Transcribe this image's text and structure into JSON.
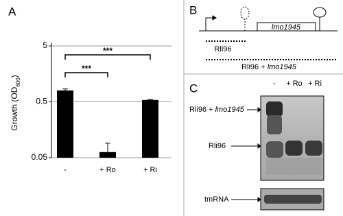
{
  "panels": {
    "a": "A",
    "b": "B",
    "c": "C"
  },
  "chart_data": {
    "type": "bar",
    "y_label_main": "Growth (OD",
    "y_label_sub": "600",
    "y_label_end": ")",
    "categories": [
      "-",
      "+ Ro",
      "+ Ri"
    ],
    "values": [
      0.8,
      0.063,
      0.54
    ],
    "errors": [
      0.05,
      0.028,
      0.01
    ],
    "color": "#000000",
    "log_scale": true,
    "ylim": [
      0.05,
      5
    ],
    "yticks": [
      5,
      0.5,
      0.05
    ],
    "grid": true,
    "significance": [
      {
        "from": 0,
        "to": 1,
        "label": "***"
      },
      {
        "from": 0,
        "to": 2,
        "label": "***"
      }
    ]
  },
  "diagram": {
    "gene": "lmo1945",
    "short_transcript": "Rli96",
    "long_transcript_main": "Rli96 + ",
    "long_transcript_italic": "lmo1945"
  },
  "gel": {
    "lanes": [
      "-",
      "+ Ro",
      "+ Ri"
    ],
    "band_long_main": "Rli96 + ",
    "band_long_italic": "lmo1945",
    "band_short": "Rli96",
    "control": "tmRNA"
  }
}
